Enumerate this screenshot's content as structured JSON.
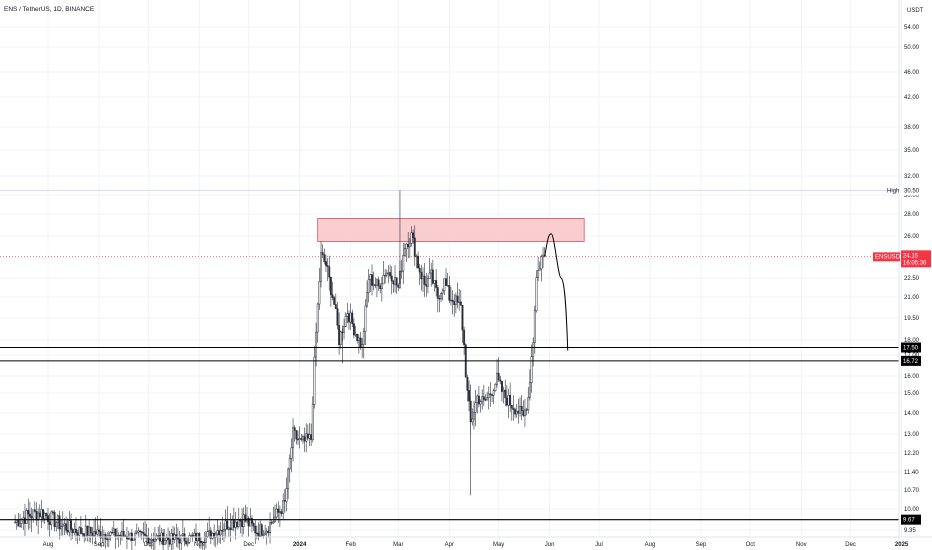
{
  "header": {
    "title": "ENS / TetherUS, 1D, BINANCE"
  },
  "axis": {
    "currency": "USDT"
  },
  "colors": {
    "candle": "#2a2e39",
    "zone_fill": "#f9c4c8",
    "zone_stroke": "#d63a47",
    "line": "#000000",
    "price_tag": "#f23645",
    "grid": "#f0f3fa",
    "high_line": "#c9cde3"
  },
  "labels": {
    "high": "High",
    "high_value": "30.50",
    "symbol_tag": "ENSUSDT",
    "price": "24.15",
    "countdown": "16:05:36",
    "level1": "17.50",
    "level2": "16.72",
    "level3": "9.67"
  },
  "chart_data": {
    "type": "candlestick",
    "title": "ENS / TetherUS, 1D, BINANCE",
    "y_axis_unit": "USDT",
    "y_ticks": [
      54.0,
      50.0,
      46.0,
      42.0,
      38.0,
      35.0,
      32.0,
      30.0,
      28.0,
      26.0,
      24.0,
      22.5,
      21.0,
      19.5,
      18.0,
      17.0,
      16.0,
      15.0,
      14.0,
      13.0,
      12.2,
      11.4,
      10.7,
      10.0,
      9.35
    ],
    "y_tick_labels": [
      "54.00",
      "50.00",
      "46.00",
      "42.00",
      "38.00",
      "35.00",
      "32.00",
      "30.00",
      "28.00",
      "26.00",
      "24.00",
      "22.50",
      "21.00",
      "19.50",
      "18.00",
      "17.00",
      "16.00",
      "15.00",
      "14.00",
      "13.00",
      "12.20",
      "11.40",
      "10.70",
      "10.00",
      "9.35"
    ],
    "x_tick_labels": [
      "Aug",
      "Sep",
      "Oct",
      "Nov",
      "Dec",
      "2024",
      "Feb",
      "Mar",
      "Apr",
      "May",
      "Jun",
      "Jul",
      "Aug",
      "Sep",
      "Oct",
      "Nov",
      "Dec",
      "2025"
    ],
    "x_tick_dates": [
      "2023-08-01",
      "2023-09-01",
      "2023-10-01",
      "2023-11-01",
      "2023-12-01",
      "2024-01-01",
      "2024-02-01",
      "2024-03-01",
      "2024-04-01",
      "2024-05-01",
      "2024-06-01",
      "2024-07-01",
      "2024-08-01",
      "2024-09-01",
      "2024-10-01",
      "2024-11-01",
      "2024-12-01",
      "2025-01-01"
    ],
    "series": [
      {
        "type": "candlestick",
        "closes": [
          [
            "2023-07-12",
            9.6
          ],
          [
            "2023-07-20",
            9.8
          ],
          [
            "2023-07-28",
            9.9
          ],
          [
            "2023-08-03",
            9.7
          ],
          [
            "2023-08-09",
            9.5
          ],
          [
            "2023-08-20",
            9.3
          ],
          [
            "2023-09-05",
            9.2
          ],
          [
            "2023-09-25",
            9.1
          ],
          [
            "2023-10-15",
            9.0
          ],
          [
            "2023-11-05",
            9.1
          ],
          [
            "2023-11-20",
            9.6
          ],
          [
            "2023-11-28",
            9.7
          ],
          [
            "2023-12-06",
            9.3
          ],
          [
            "2023-12-12",
            9.4
          ],
          [
            "2023-12-18",
            9.8
          ],
          [
            "2023-12-23",
            10.2
          ],
          [
            "2023-12-28",
            13.0
          ],
          [
            "2024-01-02",
            12.6
          ],
          [
            "2024-01-08",
            12.8
          ],
          [
            "2024-01-14",
            24.2
          ],
          [
            "2024-01-17",
            23.5
          ],
          [
            "2024-01-22",
            20.5
          ],
          [
            "2024-01-25",
            18.0
          ],
          [
            "2024-01-30",
            20.0
          ],
          [
            "2024-02-04",
            18.5
          ],
          [
            "2024-02-08",
            17.5
          ],
          [
            "2024-02-12",
            22.5
          ],
          [
            "2024-02-18",
            21.8
          ],
          [
            "2024-02-22",
            23.0
          ],
          [
            "2024-02-26",
            22.8
          ],
          [
            "2024-03-01",
            21.7
          ],
          [
            "2024-03-05",
            25.2
          ],
          [
            "2024-03-09",
            26.0
          ],
          [
            "2024-03-13",
            23.5
          ],
          [
            "2024-03-17",
            22.0
          ],
          [
            "2024-03-21",
            22.6
          ],
          [
            "2024-03-25",
            21.0
          ],
          [
            "2024-03-29",
            22.2
          ],
          [
            "2024-04-01",
            21.0
          ],
          [
            "2024-04-04",
            20.8
          ],
          [
            "2024-04-08",
            20.2
          ],
          [
            "2024-04-12",
            15.0
          ],
          [
            "2024-04-14",
            13.5
          ],
          [
            "2024-04-18",
            14.8
          ],
          [
            "2024-04-22",
            14.5
          ],
          [
            "2024-04-26",
            15.0
          ],
          [
            "2024-04-30",
            15.8
          ],
          [
            "2024-05-04",
            14.9
          ],
          [
            "2024-05-08",
            14.5
          ],
          [
            "2024-05-12",
            14.2
          ],
          [
            "2024-05-16",
            13.8
          ],
          [
            "2024-05-19",
            14.8
          ],
          [
            "2024-05-22",
            18.0
          ],
          [
            "2024-05-24",
            22.5
          ],
          [
            "2024-05-27",
            24.0
          ],
          [
            "2024-05-29",
            24.15
          ]
        ]
      },
      {
        "type": "drawing",
        "kind": "projection_path",
        "points": [
          [
            "2024-05-29",
            24.15
          ],
          [
            "2024-06-02",
            26.2
          ],
          [
            "2024-06-08",
            22.5
          ],
          [
            "2024-06-12",
            17.3
          ]
        ]
      }
    ],
    "resistance_zone": {
      "from": "2024-01-12",
      "to": "2024-06-22",
      "low": 25.5,
      "high": 27.6
    },
    "horizontal_levels": [
      17.5,
      16.72,
      9.67
    ],
    "high": 30.5,
    "last_price": 24.15,
    "legend": "none",
    "grid": true
  }
}
